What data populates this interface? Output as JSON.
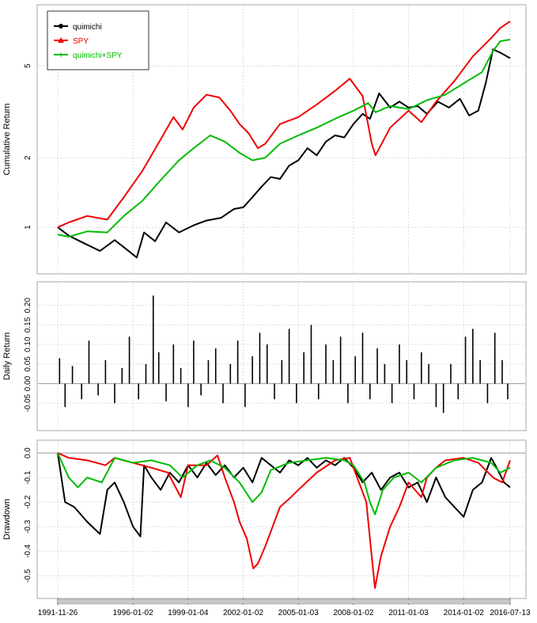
{
  "chart_data": {
    "type": "line",
    "colors": {
      "quimichi": "#000000",
      "spy": "#ee0000",
      "combo": "#00bb00",
      "grid": "#dcdcdc",
      "frame": "#aaaaaa",
      "zero_line": "#999999"
    },
    "x_ticks": [
      "1991-11-26",
      "1996-01-02",
      "1999-01-04",
      "2002-01-02",
      "2005-01-03",
      "2008-01-02",
      "2011-01-03",
      "2014-01-02",
      "2016-07-13"
    ],
    "x_tick_years": [
      1991.9,
      1996.0,
      1999.0,
      2002.0,
      2005.0,
      2008.0,
      2011.0,
      2014.0,
      2016.53
    ],
    "xlim": [
      1991.9,
      2016.53
    ],
    "legend": {
      "placement": "top-left",
      "entries": [
        "quimichi",
        "SPY",
        "quimichi+SPY"
      ]
    },
    "panels": [
      {
        "id": "cumulative",
        "ylabel": "Cumulative Return",
        "scale": "log",
        "ylim": [
          0.68,
          8.5
        ],
        "yticks": [
          1,
          2,
          5
        ],
        "ytick_labels": [
          "1",
          "2",
          "5"
        ],
        "grid": true,
        "series": [
          {
            "name": "quimichi",
            "key": "quimichi",
            "x": [
              1991.9,
              1992.5,
              1993.5,
              1994.2,
              1995.0,
              1995.5,
              1996.2,
              1996.6,
              1997.2,
              1997.8,
              1998.5,
              1999.3,
              2000.0,
              2000.8,
              2001.5,
              2002.0,
              2002.5,
              2003.0,
              2003.5,
              2004.0,
              2004.5,
              2005.0,
              2005.5,
              2006.0,
              2006.5,
              2007.0,
              2007.5,
              2008.0,
              2008.5,
              2008.9,
              2009.4,
              2010.0,
              2010.5,
              2011.0,
              2011.5,
              2012.0,
              2012.6,
              2013.2,
              2013.8,
              2014.3,
              2014.8,
              2015.2,
              2015.6,
              2016.0,
              2016.53
            ],
            "y": [
              1.0,
              0.92,
              0.84,
              0.79,
              0.88,
              0.82,
              0.74,
              0.95,
              0.87,
              1.05,
              0.95,
              1.02,
              1.07,
              1.1,
              1.2,
              1.22,
              1.35,
              1.5,
              1.65,
              1.62,
              1.85,
              1.95,
              2.2,
              2.05,
              2.35,
              2.5,
              2.45,
              2.8,
              3.1,
              2.95,
              3.8,
              3.3,
              3.5,
              3.3,
              3.35,
              3.1,
              3.5,
              3.3,
              3.6,
              3.05,
              3.2,
              4.2,
              5.9,
              5.7,
              5.4
            ]
          },
          {
            "name": "SPY",
            "key": "spy",
            "x": [
              1991.9,
              1992.5,
              1993.5,
              1994.6,
              1995.5,
              1996.5,
              1997.5,
              1998.2,
              1998.7,
              1999.3,
              2000.0,
              2000.7,
              2001.3,
              2001.8,
              2002.3,
              2002.8,
              2003.2,
              2004.0,
              2005.0,
              2006.0,
              2007.0,
              2007.8,
              2008.5,
              2009.0,
              2009.2,
              2010.0,
              2011.0,
              2011.7,
              2012.5,
              2013.5,
              2014.5,
              2015.5,
              2016.0,
              2016.53
            ],
            "y": [
              1.0,
              1.05,
              1.12,
              1.08,
              1.35,
              1.75,
              2.4,
              3.0,
              2.65,
              3.3,
              3.75,
              3.65,
              3.2,
              2.8,
              2.55,
              2.2,
              2.3,
              2.8,
              3.0,
              3.4,
              3.9,
              4.4,
              3.7,
              2.3,
              2.05,
              2.7,
              3.2,
              2.85,
              3.5,
              4.3,
              5.5,
              6.6,
              7.3,
              7.8
            ]
          },
          {
            "name": "quimichi+SPY",
            "key": "combo",
            "x": [
              1991.9,
              1992.5,
              1993.5,
              1994.6,
              1995.5,
              1996.5,
              1997.5,
              1998.5,
              1999.3,
              2000.2,
              2001.0,
              2001.8,
              2002.5,
              2003.2,
              2004.0,
              2005.0,
              2006.0,
              2007.0,
              2008.0,
              2008.8,
              2009.2,
              2010.0,
              2011.0,
              2012.0,
              2013.0,
              2014.0,
              2015.0,
              2015.6,
              2016.0,
              2016.53
            ],
            "y": [
              0.93,
              0.91,
              0.96,
              0.95,
              1.12,
              1.3,
              1.6,
              1.95,
              2.2,
              2.5,
              2.35,
              2.1,
              1.95,
              2.0,
              2.3,
              2.5,
              2.7,
              2.95,
              3.2,
              3.45,
              3.15,
              3.35,
              3.25,
              3.55,
              3.75,
              4.2,
              4.7,
              5.8,
              6.4,
              6.5
            ]
          }
        ]
      },
      {
        "id": "daily",
        "ylabel": "Daily Return",
        "ylim": [
          -0.1,
          0.24
        ],
        "yticks": [
          -0.05,
          0.0,
          0.05,
          0.1,
          0.15,
          0.2
        ],
        "ytick_labels": [
          "-0.05",
          "0.00",
          "0.05",
          "0.10",
          "0.15",
          "0.20"
        ],
        "grid": true,
        "series": [
          {
            "name": "quimichi",
            "key": "quimichi",
            "x": [
              1992.0,
              1992.3,
              1992.7,
              1993.2,
              1993.6,
              1994.1,
              1994.5,
              1995.0,
              1995.4,
              1995.8,
              1996.3,
              1996.7,
              1997.1,
              1997.4,
              1997.8,
              1998.2,
              1998.6,
              1999.0,
              1999.3,
              1999.7,
              2000.1,
              2000.5,
              2000.9,
              2001.3,
              2001.7,
              2002.1,
              2002.5,
              2002.9,
              2003.3,
              2003.7,
              2004.1,
              2004.5,
              2004.9,
              2005.3,
              2005.7,
              2006.1,
              2006.5,
              2006.9,
              2007.3,
              2007.7,
              2008.1,
              2008.5,
              2008.9,
              2009.3,
              2009.7,
              2010.1,
              2010.5,
              2010.9,
              2011.3,
              2011.7,
              2012.1,
              2012.5,
              2012.9,
              2013.3,
              2013.7,
              2014.1,
              2014.5,
              2014.9,
              2015.3,
              2015.7,
              2016.1,
              2016.4
            ],
            "y": [
              0.065,
              -0.06,
              0.045,
              -0.04,
              0.11,
              -0.03,
              0.06,
              -0.05,
              0.04,
              0.12,
              -0.04,
              0.05,
              0.225,
              0.08,
              -0.045,
              0.1,
              0.04,
              -0.06,
              0.11,
              -0.03,
              0.06,
              0.09,
              -0.05,
              0.05,
              0.11,
              -0.06,
              0.07,
              0.13,
              0.1,
              -0.04,
              0.06,
              0.14,
              -0.05,
              0.08,
              0.15,
              -0.04,
              0.1,
              0.06,
              0.12,
              -0.05,
              0.07,
              0.13,
              -0.04,
              0.09,
              0.05,
              -0.05,
              0.1,
              0.06,
              -0.04,
              0.08,
              0.05,
              -0.06,
              -0.075,
              0.05,
              -0.04,
              0.12,
              0.14,
              0.06,
              -0.05,
              0.13,
              0.06,
              -0.04
            ]
          }
        ]
      },
      {
        "id": "drawdown",
        "ylabel": "Drawdown",
        "ylim": [
          -0.56,
          0.02
        ],
        "yticks": [
          -0.5,
          -0.4,
          -0.3,
          -0.2,
          -0.1,
          0.0
        ],
        "ytick_labels": [
          "-0.5",
          "-0.4",
          "-0.3",
          "-0.2",
          "-0.1",
          "0.0"
        ],
        "grid": true,
        "series": [
          {
            "name": "quimichi",
            "key": "quimichi",
            "x": [
              1991.9,
              1992.3,
              1992.8,
              1993.5,
              1994.2,
              1994.6,
              1995.0,
              1995.5,
              1996.0,
              1996.4,
              1996.6,
              1997.0,
              1997.5,
              1998.0,
              1998.5,
              1999.0,
              1999.5,
              2000.0,
              2000.5,
              2001.0,
              2001.5,
              2002.0,
              2002.5,
              2003.0,
              2003.5,
              2004.0,
              2004.5,
              2005.0,
              2005.5,
              2006.0,
              2006.5,
              2007.0,
              2007.5,
              2008.0,
              2008.5,
              2009.0,
              2009.5,
              2010.0,
              2010.5,
              2011.0,
              2011.5,
              2012.0,
              2012.5,
              2013.0,
              2013.5,
              2014.0,
              2014.5,
              2015.0,
              2015.5,
              2015.8,
              2016.2,
              2016.53
            ],
            "y": [
              0.0,
              -0.2,
              -0.22,
              -0.28,
              -0.33,
              -0.15,
              -0.12,
              -0.2,
              -0.3,
              -0.34,
              -0.05,
              -0.1,
              -0.15,
              -0.08,
              -0.12,
              -0.05,
              -0.1,
              -0.04,
              -0.09,
              -0.05,
              -0.1,
              -0.06,
              -0.12,
              -0.02,
              -0.05,
              -0.08,
              -0.03,
              -0.05,
              -0.02,
              -0.06,
              -0.03,
              -0.05,
              -0.02,
              -0.06,
              -0.12,
              -0.08,
              -0.15,
              -0.1,
              -0.08,
              -0.14,
              -0.12,
              -0.2,
              -0.1,
              -0.18,
              -0.22,
              -0.26,
              -0.15,
              -0.12,
              -0.02,
              -0.06,
              -0.12,
              -0.14
            ]
          },
          {
            "name": "SPY",
            "key": "spy",
            "x": [
              1991.9,
              1992.5,
              1993.5,
              1994.5,
              1995.0,
              1996.0,
              1997.0,
              1997.9,
              1998.6,
              1999.0,
              2000.0,
              2000.6,
              2001.0,
              2001.5,
              2001.8,
              2002.2,
              2002.55,
              2002.8,
              2003.2,
              2003.6,
              2004.0,
              2004.6,
              2005.0,
              2006.0,
              2007.0,
              2007.8,
              2008.3,
              2008.7,
              2008.9,
              2009.17,
              2009.5,
              2010.0,
              2010.5,
              2011.0,
              2011.7,
              2012.0,
              2012.5,
              2013.0,
              2014.0,
              2014.8,
              2015.6,
              2016.1,
              2016.53
            ],
            "y": [
              0.0,
              -0.02,
              -0.03,
              -0.05,
              -0.02,
              -0.04,
              -0.06,
              -0.08,
              -0.18,
              -0.05,
              -0.05,
              -0.01,
              -0.1,
              -0.2,
              -0.28,
              -0.35,
              -0.47,
              -0.45,
              -0.38,
              -0.3,
              -0.22,
              -0.18,
              -0.15,
              -0.08,
              -0.03,
              -0.02,
              -0.12,
              -0.2,
              -0.35,
              -0.55,
              -0.42,
              -0.3,
              -0.22,
              -0.12,
              -0.18,
              -0.1,
              -0.06,
              -0.03,
              -0.02,
              -0.04,
              -0.1,
              -0.12,
              -0.03
            ]
          },
          {
            "name": "quimichi+SPY",
            "key": "combo",
            "x": [
              1991.9,
              1992.5,
              1993.0,
              1993.5,
              1994.3,
              1995.0,
              1996.0,
              1997.0,
              1998.0,
              1998.7,
              1999.5,
              2000.2,
              2001.0,
              2001.8,
              2002.5,
              2003.0,
              2003.5,
              2004.5,
              2005.5,
              2006.5,
              2007.5,
              2008.0,
              2008.6,
              2008.9,
              2009.17,
              2009.6,
              2010.2,
              2011.0,
              2011.7,
              2012.5,
              2013.5,
              2014.5,
              2015.5,
              2016.0,
              2016.53
            ],
            "y": [
              0.0,
              -0.1,
              -0.14,
              -0.1,
              -0.12,
              -0.02,
              -0.04,
              -0.03,
              -0.05,
              -0.1,
              -0.05,
              -0.03,
              -0.06,
              -0.12,
              -0.2,
              -0.16,
              -0.07,
              -0.04,
              -0.03,
              -0.02,
              -0.03,
              -0.05,
              -0.12,
              -0.2,
              -0.25,
              -0.15,
              -0.1,
              -0.08,
              -0.12,
              -0.06,
              -0.03,
              -0.02,
              -0.04,
              -0.08,
              -0.06
            ]
          }
        ]
      }
    ]
  }
}
